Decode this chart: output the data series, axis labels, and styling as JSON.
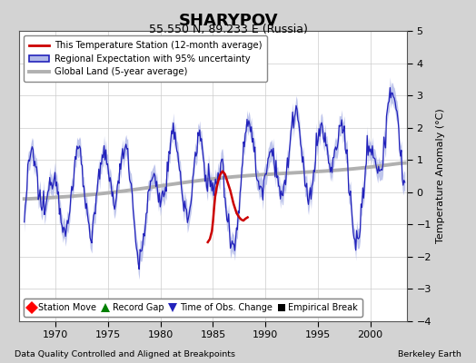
{
  "title": "SHARYPOV",
  "subtitle": "55.550 N, 89.233 E (Russia)",
  "ylabel": "Temperature Anomaly (°C)",
  "xlabel_bottom": "Data Quality Controlled and Aligned at Breakpoints",
  "xlabel_right": "Berkeley Earth",
  "ylim": [
    -4,
    5
  ],
  "xlim": [
    1966.5,
    2003.5
  ],
  "xticks": [
    1970,
    1975,
    1980,
    1985,
    1990,
    1995,
    2000
  ],
  "yticks": [
    -4,
    -3,
    -2,
    -1,
    0,
    1,
    2,
    3,
    4,
    5
  ],
  "bg_color": "#d3d3d3",
  "plot_bg_color": "#ffffff",
  "regional_color": "#2222bb",
  "regional_fill_color": "#b0b8e8",
  "station_color": "#cc0000",
  "global_color": "#b0b0b0",
  "legend1_labels": [
    "This Temperature Station (12-month average)",
    "Regional Expectation with 95% uncertainty",
    "Global Land (5-year average)"
  ],
  "legend2_labels": [
    "Station Move",
    "Record Gap",
    "Time of Obs. Change",
    "Empirical Break"
  ]
}
